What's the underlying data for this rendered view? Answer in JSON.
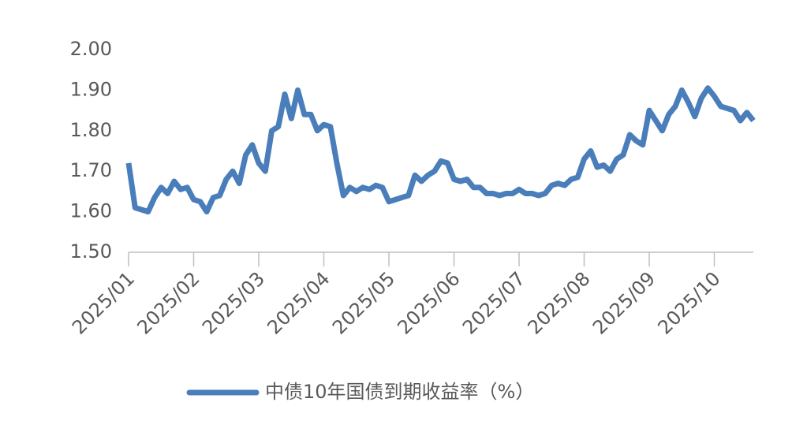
{
  "chart_data": {
    "type": "line",
    "categories": [
      "2025/01",
      null,
      null,
      null,
      null,
      null,
      null,
      null,
      null,
      null,
      "2025/02",
      null,
      null,
      null,
      null,
      null,
      null,
      null,
      null,
      null,
      "2025/03",
      null,
      null,
      null,
      null,
      null,
      null,
      null,
      null,
      null,
      "2025/04",
      null,
      null,
      null,
      null,
      null,
      null,
      null,
      null,
      null,
      "2025/05",
      null,
      null,
      null,
      null,
      null,
      null,
      null,
      null,
      null,
      "2025/06",
      null,
      null,
      null,
      null,
      null,
      null,
      null,
      null,
      null,
      "2025/07",
      null,
      null,
      null,
      null,
      null,
      null,
      null,
      null,
      null,
      "2025/08",
      null,
      null,
      null,
      null,
      null,
      null,
      null,
      null,
      null,
      "2025/09",
      null,
      null,
      null,
      null,
      null,
      null,
      null,
      null,
      null,
      "2025/10",
      null,
      null,
      null,
      null,
      null,
      null
    ],
    "series": [
      {
        "name": "中债10年国债到期收益率（%）",
        "color": "#4a7ebb",
        "values": [
          1.72,
          1.61,
          1.605,
          1.6,
          1.635,
          1.66,
          1.645,
          1.675,
          1.655,
          1.66,
          1.63,
          1.625,
          1.6,
          1.635,
          1.64,
          1.68,
          1.7,
          1.67,
          1.74,
          1.765,
          1.72,
          1.7,
          1.8,
          1.81,
          1.89,
          1.83,
          1.9,
          1.84,
          1.84,
          1.8,
          1.815,
          1.81,
          1.72,
          1.64,
          1.66,
          1.65,
          1.66,
          1.655,
          1.665,
          1.66,
          1.625,
          1.63,
          1.635,
          1.64,
          1.69,
          1.675,
          1.69,
          1.7,
          1.725,
          1.72,
          1.68,
          1.675,
          1.68,
          1.66,
          1.66,
          1.645,
          1.645,
          1.64,
          1.645,
          1.645,
          1.655,
          1.645,
          1.645,
          1.64,
          1.645,
          1.665,
          1.67,
          1.665,
          1.68,
          1.685,
          1.73,
          1.75,
          1.71,
          1.715,
          1.7,
          1.73,
          1.74,
          1.79,
          1.775,
          1.765,
          1.85,
          1.825,
          1.8,
          1.84,
          1.86,
          1.9,
          1.87,
          1.835,
          1.88,
          1.905,
          1.885,
          1.86,
          1.855,
          1.85,
          1.825,
          1.845,
          1.825
        ]
      }
    ],
    "ylim": [
      1.5,
      2.0
    ],
    "yticks": [
      {
        "value": 1.5,
        "label": "1.50"
      },
      {
        "value": 1.6,
        "label": "1.60"
      },
      {
        "value": 1.7,
        "label": "1.70"
      },
      {
        "value": 1.8,
        "label": "1.80"
      },
      {
        "value": 1.9,
        "label": "1.90"
      },
      {
        "value": 2.0,
        "label": "2.00"
      }
    ],
    "grid": false,
    "legend": "bottom"
  }
}
